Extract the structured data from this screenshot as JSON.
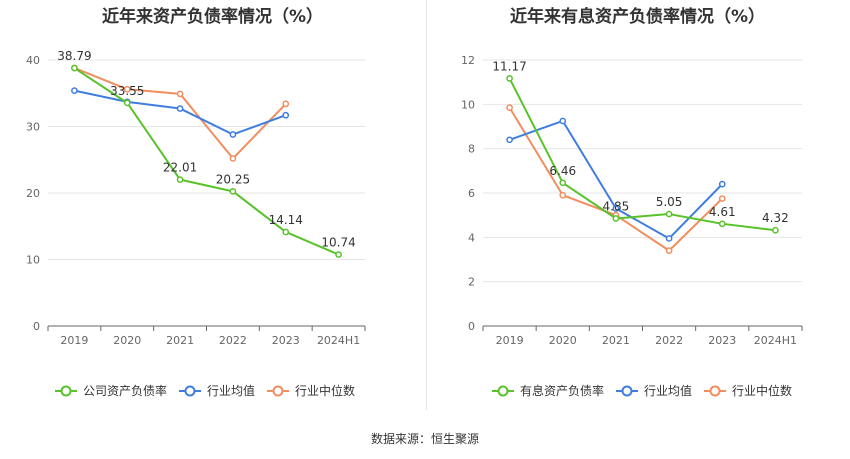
{
  "chart_data": [
    {
      "type": "line",
      "title": "近年来资产负债率情况（%）",
      "categories": [
        "2019",
        "2020",
        "2021",
        "2022",
        "2023",
        "2024H1"
      ],
      "ylim": [
        0,
        40
      ],
      "yticks": [
        0,
        10,
        20,
        30,
        40
      ],
      "grid": true,
      "legend_position": "bottom",
      "series": [
        {
          "name": "公司资产负债率",
          "color": "#58c22a",
          "values": [
            38.79,
            33.55,
            22.01,
            20.25,
            14.14,
            10.74
          ],
          "labels": [
            "38.79",
            "33.55",
            "22.01",
            "20.25",
            "14.14",
            "10.74"
          ]
        },
        {
          "name": "行业均值",
          "color": "#3f7ee0",
          "values": [
            35.4,
            33.7,
            32.7,
            28.8,
            31.7,
            null
          ]
        },
        {
          "name": "行业中位数",
          "color": "#f28d5e",
          "values": [
            38.8,
            35.6,
            34.9,
            25.2,
            33.4,
            null
          ]
        }
      ]
    },
    {
      "type": "line",
      "title": "近年来有息资产负债率情况（%）",
      "categories": [
        "2019",
        "2020",
        "2021",
        "2022",
        "2023",
        "2024H1"
      ],
      "ylim": [
        0,
        12
      ],
      "yticks": [
        0,
        2,
        4,
        6,
        8,
        10,
        12
      ],
      "grid": true,
      "legend_position": "bottom",
      "series": [
        {
          "name": "有息资产负债率",
          "color": "#58c22a",
          "values": [
            11.17,
            6.46,
            4.85,
            5.05,
            4.61,
            4.32
          ],
          "labels": [
            "11.17",
            "6.46",
            "4.85",
            "5.05",
            "4.61",
            "4.32"
          ]
        },
        {
          "name": "行业均值",
          "color": "#3f7ee0",
          "values": [
            8.4,
            9.25,
            5.3,
            3.95,
            6.4,
            null
          ]
        },
        {
          "name": "行业中位数",
          "color": "#f28d5e",
          "values": [
            9.85,
            5.9,
            5.0,
            3.4,
            5.75,
            null
          ]
        }
      ]
    }
  ],
  "source_label": "数据来源：恒生聚源"
}
